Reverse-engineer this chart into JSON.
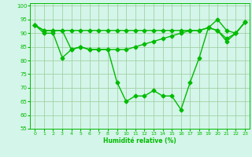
{
  "line1": {
    "x": [
      0,
      1,
      2,
      3,
      4,
      5,
      6,
      7,
      8,
      9,
      10,
      11,
      12,
      13,
      14,
      15,
      16,
      17,
      18,
      19,
      20,
      21,
      22,
      23
    ],
    "y": [
      93,
      91,
      91,
      91,
      91,
      91,
      91,
      91,
      91,
      91,
      91,
      91,
      91,
      91,
      91,
      91,
      91,
      91,
      91,
      92,
      95,
      91,
      90,
      94
    ]
  },
  "line2": {
    "x": [
      0,
      1,
      2,
      3,
      4,
      5,
      6,
      7,
      8,
      9,
      10,
      11,
      12,
      13,
      14,
      15,
      16,
      17,
      18,
      19,
      20,
      21,
      22,
      23
    ],
    "y": [
      93,
      90,
      90,
      81,
      84,
      85,
      84,
      84,
      84,
      72,
      65,
      67,
      67,
      69,
      67,
      67,
      62,
      72,
      81,
      92,
      91,
      87,
      90,
      94
    ]
  },
  "line3": {
    "x": [
      0,
      1,
      2,
      3,
      4,
      5,
      6,
      7,
      8,
      9,
      10,
      11,
      12,
      13,
      14,
      15,
      16,
      17,
      18,
      19,
      20,
      21,
      22,
      23
    ],
    "y": [
      93,
      91,
      91,
      91,
      84,
      85,
      84,
      84,
      84,
      84,
      84,
      85,
      86,
      87,
      88,
      89,
      90,
      91,
      91,
      92,
      91,
      88,
      90,
      94
    ]
  },
  "line_color": "#00bb00",
  "bg_color": "#d4f5e9",
  "grid_color": "#99cc99",
  "xlabel": "Humidité relative (%)",
  "xlim": [
    -0.5,
    23.5
  ],
  "ylim": [
    55,
    101
  ],
  "yticks": [
    55,
    60,
    65,
    70,
    75,
    80,
    85,
    90,
    95,
    100
  ],
  "xticks": [
    0,
    1,
    2,
    3,
    4,
    5,
    6,
    7,
    8,
    9,
    10,
    11,
    12,
    13,
    14,
    15,
    16,
    17,
    18,
    19,
    20,
    21,
    22,
    23
  ]
}
